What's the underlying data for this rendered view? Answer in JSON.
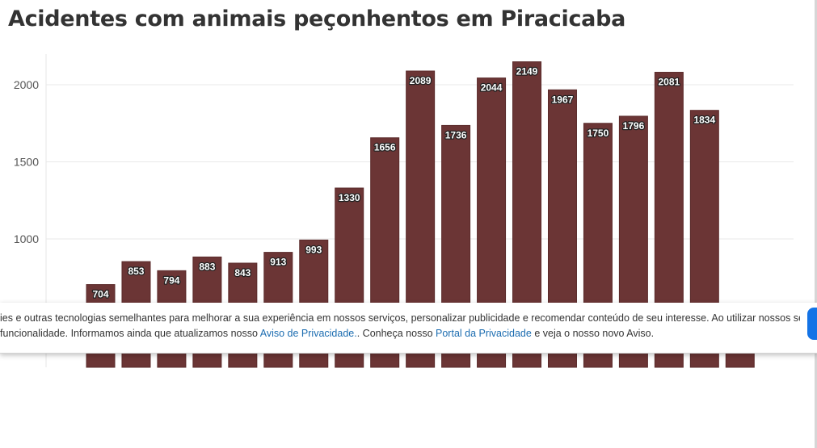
{
  "title": "Acidentes com animais peçonhentos em Piracicaba",
  "chart_data": {
    "type": "bar",
    "title": "Acidentes com animais peçonhentos em Piracicaba",
    "values": [
      704,
      853,
      794,
      883,
      843,
      913,
      993,
      1330,
      1656,
      2089,
      1736,
      2044,
      2149,
      1967,
      1750,
      1796,
      2081,
      1834,
      null
    ],
    "data_labels": [
      "704",
      "853",
      "794",
      "883",
      "843",
      "913",
      "993",
      "1330",
      "1656",
      "2089",
      "1736",
      "2044",
      "2149",
      "1967",
      "1750",
      "1796",
      "2081",
      "1834",
      ""
    ],
    "y_ticks": [
      1000,
      1500,
      2000
    ],
    "y_tick_labels": [
      "1000",
      "1500",
      "2000"
    ],
    "bar_color": "#6b3535",
    "grid": true,
    "legend": "none"
  },
  "banner": {
    "line1": "ies e outras tecnologias semelhantes para melhorar a sua experiência em nossos serviços, personalizar publicidade e recomendar conteúdo de seu interesse. Ao utilizar nossos serviços, você",
    "line2_prefix": "funcionalidade. Informamos ainda que atualizamos nosso ",
    "privacy_notice_link": "Aviso de Privacidade.",
    "line2_middle": ". Conheça nosso ",
    "privacy_portal_link": "Portal da Privacidade",
    "line2_suffix": " e veja o nosso novo Aviso.",
    "button_color": "#1473e6"
  }
}
